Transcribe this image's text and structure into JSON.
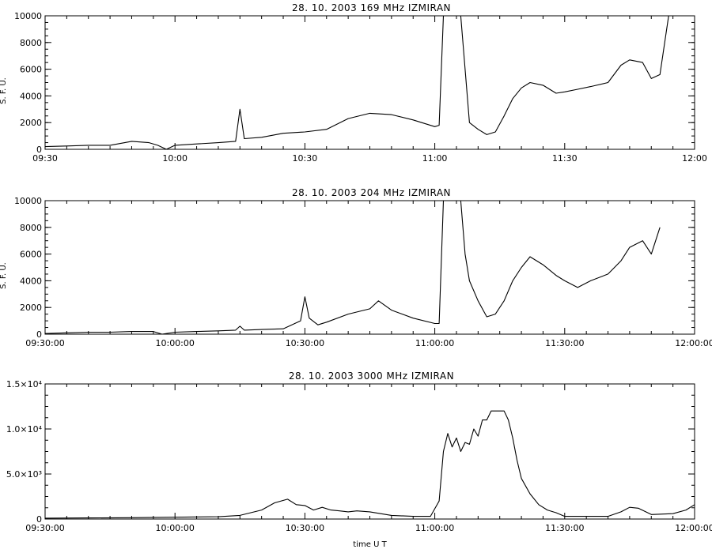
{
  "chart_data": [
    {
      "type": "line",
      "title": "28.  10.  2003    169 MHz     IZMIRAN",
      "ylabel": "S. F. U.",
      "xlabel": "",
      "xlim": [
        "09:30",
        "12:00"
      ],
      "ylim": [
        0,
        10000
      ],
      "x_ticks": [
        "09:30",
        "10:00",
        "10:30",
        "11:00",
        "11:30",
        "12:00"
      ],
      "y_ticks": [
        "0",
        "2000",
        "4000",
        "6000",
        "8000",
        "10000"
      ],
      "series": [
        {
          "x": [
            "09:30",
            "09:35",
            "09:40",
            "09:45",
            "09:50",
            "09:54",
            "09:56",
            "09:58",
            "10:00",
            "10:05",
            "10:10",
            "10:14",
            "10:15",
            "10:16",
            "10:20",
            "10:25",
            "10:30",
            "10:35",
            "10:40",
            "10:45",
            "10:50",
            "10:55",
            "11:00",
            "11:01",
            "11:02",
            "11:03",
            "11:05",
            "11:06",
            "11:07",
            "11:08",
            "11:10",
            "11:12",
            "11:14",
            "11:16",
            "11:18",
            "11:20",
            "11:22",
            "11:25",
            "11:28",
            "11:30",
            "11:33",
            "11:36",
            "11:40",
            "11:43",
            "11:45",
            "11:48",
            "11:50",
            "11:52",
            "11:54"
          ],
          "values": [
            200,
            250,
            300,
            300,
            600,
            500,
            300,
            -100,
            300,
            400,
            500,
            600,
            3000,
            800,
            900,
            1200,
            1300,
            1500,
            2300,
            2700,
            2600,
            2200,
            1700,
            1800,
            10000,
            10000,
            10000,
            10000,
            6000,
            2000,
            1500,
            1100,
            1300,
            2500,
            3800,
            4600,
            5000,
            4800,
            4200,
            4300,
            4500,
            4700,
            5000,
            6300,
            6700,
            6500,
            5300,
            5600,
            10000
          ]
        }
      ]
    },
    {
      "type": "line",
      "title": "28.  10.  2003    204 MHz     IZMIRAN",
      "ylabel": "S. F. U.",
      "xlabel": "",
      "xlim": [
        "09:30:00",
        "12:00:00"
      ],
      "ylim": [
        0,
        10000
      ],
      "x_ticks": [
        "09:30:00",
        "10:00:00",
        "10:30:00",
        "11:00:00",
        "11:30:00",
        "12:00:00"
      ],
      "y_ticks": [
        "0",
        "2000",
        "4000",
        "6000",
        "8000",
        "10000"
      ],
      "series": [
        {
          "x": [
            "09:30",
            "09:35",
            "09:40",
            "09:45",
            "09:50",
            "09:55",
            "09:57",
            "10:00",
            "10:05",
            "10:10",
            "10:14",
            "10:15",
            "10:16",
            "10:20",
            "10:25",
            "10:29",
            "10:30",
            "10:31",
            "10:33",
            "10:35",
            "10:40",
            "10:45",
            "10:47",
            "10:50",
            "10:55",
            "11:00",
            "11:01",
            "11:02",
            "11:03",
            "11:05",
            "11:06",
            "11:07",
            "11:08",
            "11:10",
            "11:12",
            "11:14",
            "11:16",
            "11:18",
            "11:20",
            "11:22",
            "11:25",
            "11:28",
            "11:30",
            "11:33",
            "11:36",
            "11:40",
            "11:43",
            "11:45",
            "11:48",
            "11:50",
            "11:52"
          ],
          "values": [
            50,
            100,
            150,
            150,
            200,
            200,
            -100,
            150,
            200,
            250,
            300,
            600,
            300,
            350,
            400,
            1000,
            2800,
            1200,
            700,
            900,
            1500,
            1900,
            2500,
            1800,
            1200,
            800,
            800,
            10000,
            10000,
            10000,
            10000,
            6000,
            4000,
            2500,
            1300,
            1500,
            2500,
            4000,
            5000,
            5800,
            5200,
            4400,
            4000,
            3500,
            4000,
            4500,
            5500,
            6500,
            7000,
            6000,
            8000
          ]
        }
      ]
    },
    {
      "type": "line",
      "title": "28.  10.  2003    3000 MHz     IZMIRAN",
      "ylabel": "",
      "xlabel": "time  U T",
      "xlim": [
        "09:30:00",
        "12:00:00"
      ],
      "ylim": [
        0,
        15000
      ],
      "x_ticks": [
        "09:30:00",
        "10:00:00",
        "10:30:00",
        "11:00:00",
        "11:30:00",
        "12:00:00"
      ],
      "y_ticks": [
        "0",
        "5.0×10³",
        "1.0×10⁴",
        "1.5×10⁴"
      ],
      "series": [
        {
          "x": [
            "09:30",
            "09:40",
            "09:50",
            "10:00",
            "10:10",
            "10:15",
            "10:20",
            "10:23",
            "10:26",
            "10:28",
            "10:30",
            "10:32",
            "10:34",
            "10:36",
            "10:38",
            "10:40",
            "10:42",
            "10:45",
            "10:50",
            "10:55",
            "10:59",
            "11:01",
            "11:02",
            "11:03",
            "11:04",
            "11:05",
            "11:06",
            "11:07",
            "11:08",
            "11:09",
            "11:10",
            "11:11",
            "11:12",
            "11:13",
            "11:14",
            "11:16",
            "11:17",
            "11:18",
            "11:19",
            "11:20",
            "11:22",
            "11:24",
            "11:26",
            "11:28",
            "11:30",
            "11:35",
            "11:40",
            "11:43",
            "11:45",
            "11:47",
            "11:50",
            "11:55",
            "11:58",
            "12:00"
          ],
          "values": [
            100,
            120,
            150,
            200,
            250,
            400,
            1000,
            1800,
            2200,
            1600,
            1500,
            1000,
            1300,
            1000,
            900,
            800,
            900,
            800,
            400,
            300,
            300,
            2000,
            7500,
            9500,
            8000,
            9000,
            7500,
            8500,
            8300,
            10000,
            9200,
            11000,
            11000,
            12000,
            12000,
            12000,
            11000,
            9000,
            6500,
            4500,
            2800,
            1600,
            1000,
            700,
            300,
            300,
            300,
            800,
            1300,
            1200,
            500,
            600,
            1000,
            1600
          ]
        }
      ]
    }
  ]
}
